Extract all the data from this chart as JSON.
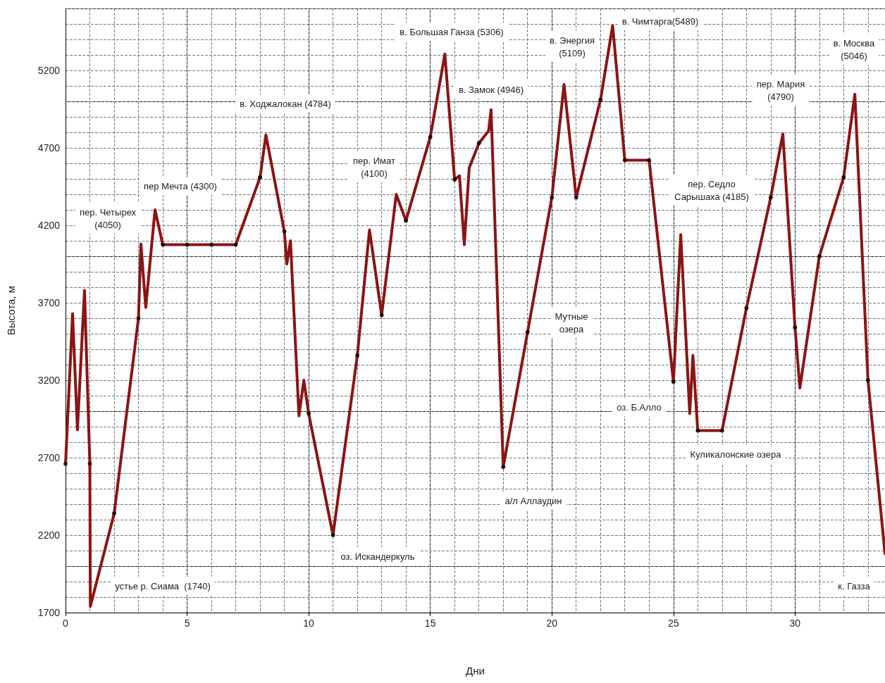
{
  "chart_data": {
    "type": "line",
    "xlabel": "Дни",
    "ylabel": "Высота, м",
    "xlim": [
      0,
      33.7
    ],
    "ylim": [
      1700,
      5600
    ],
    "xticks": [
      0,
      5,
      10,
      15,
      20,
      25,
      30
    ],
    "yticks": [
      1700,
      2200,
      2700,
      3200,
      3700,
      4200,
      4700,
      5200
    ],
    "grid": true,
    "series": [
      {
        "color": "#8b1414",
        "marker": "none",
        "line_style": "solid",
        "x": [
          0,
          0.29,
          0.49,
          0.78,
          1,
          1.02,
          2,
          3,
          3.1,
          3.3,
          3.68,
          4,
          5,
          6,
          7,
          8,
          8.24,
          9,
          9.1,
          9.25,
          9.6,
          9.8,
          10,
          11,
          12,
          12.5,
          13,
          13.6,
          14,
          15,
          15.6,
          16,
          16.2,
          16.4,
          16.6,
          17,
          17.4,
          17.5,
          18,
          19,
          20,
          20.5,
          21,
          22,
          22.5,
          23,
          24,
          25,
          25.3,
          25.67,
          25.8,
          26,
          27,
          28,
          29,
          29.5,
          30,
          30.2,
          31,
          32,
          32.46,
          33,
          33.7
        ],
        "values": [
          2660,
          3630,
          2880,
          3780,
          2660,
          1740,
          2340,
          3600,
          4080,
          3670,
          4300,
          4075,
          4075,
          4075,
          4075,
          4510,
          4784,
          4160,
          3950,
          4100,
          2970,
          3200,
          2985,
          2200,
          3360,
          4170,
          3620,
          4400,
          4230,
          4770,
          5306,
          4495,
          4520,
          4075,
          4570,
          4730,
          4810,
          4946,
          2640,
          3510,
          4380,
          5109,
          4380,
          5010,
          5489,
          4620,
          4620,
          3190,
          4140,
          2985,
          3360,
          2875,
          2875,
          3665,
          4380,
          4790,
          3540,
          3150,
          4000,
          4510,
          5046,
          3200,
          2080
        ]
      },
      {
        "type": "scatter",
        "color": "#000000",
        "marker": "circle",
        "x": [
          0,
          1,
          2,
          3,
          4,
          5,
          6,
          7,
          8,
          9,
          10,
          11,
          12,
          13,
          14,
          15,
          16,
          17,
          18,
          19,
          20,
          21,
          22,
          23,
          24,
          25,
          26,
          27,
          28,
          29,
          30,
          31,
          32,
          33
        ],
        "values": [
          2660,
          2660,
          2340,
          3600,
          4075,
          4075,
          4075,
          4075,
          4510,
          4160,
          2985,
          2200,
          3360,
          3620,
          4230,
          4770,
          4495,
          4730,
          2640,
          3510,
          4380,
          4380,
          5010,
          4620,
          4620,
          3190,
          2875,
          2875,
          3665,
          4380,
          3540,
          4000,
          4510,
          3200
        ]
      }
    ],
    "annotations": [
      "пер. Четырех\n(4050)",
      "пер Мечта (4300)",
      "в. Ходжалокан (4784)",
      "пер. Имат\n(4100)",
      "в. Большая Ганза (5306)",
      "в. Замок (4946)",
      "в. Энергия\n(5109)",
      "в. Чимтарга(5489)",
      "в. Москва\n(5046)",
      "пер. Мария\n(4790)",
      "пер. Седло\nСарышаха (4185)",
      "Мутные\nозера",
      "оз. Б.Алло",
      "Куликалонские озера",
      "а/л Аллаудин",
      "оз. Искандеркуль",
      "устье р. Сиама  (1740)",
      "к. Газза"
    ]
  }
}
